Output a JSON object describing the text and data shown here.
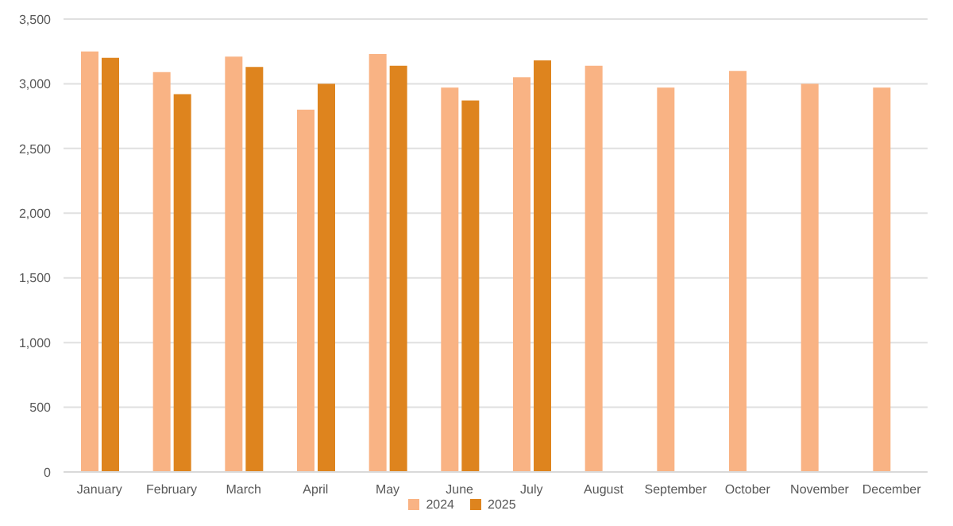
{
  "chart_data": {
    "type": "bar",
    "categories": [
      "January",
      "February",
      "March",
      "April",
      "May",
      "June",
      "July",
      "August",
      "September",
      "October",
      "November",
      "December"
    ],
    "series": [
      {
        "name": "2024",
        "color": "#f9b384",
        "values": [
          3250,
          3090,
          3210,
          2800,
          3230,
          2970,
          3050,
          3140,
          2970,
          3100,
          3000,
          2970
        ]
      },
      {
        "name": "2025",
        "color": "#de841e",
        "values": [
          3200,
          2920,
          3130,
          3000,
          3140,
          2870,
          3180,
          null,
          null,
          null,
          null,
          null
        ]
      }
    ],
    "ylim": [
      0,
      3500
    ],
    "yticks": [
      0,
      500,
      {
        "value": 1000,
        "label": "1,000"
      },
      {
        "value": 1500,
        "label": "1,500"
      },
      {
        "value": 2000,
        "label": "2,000"
      },
      {
        "value": 2500,
        "label": "2,500"
      },
      {
        "value": 3000,
        "label": "3,000"
      },
      {
        "value": 3500,
        "label": "3,500"
      }
    ],
    "grid": "y",
    "legend": "bottom"
  }
}
